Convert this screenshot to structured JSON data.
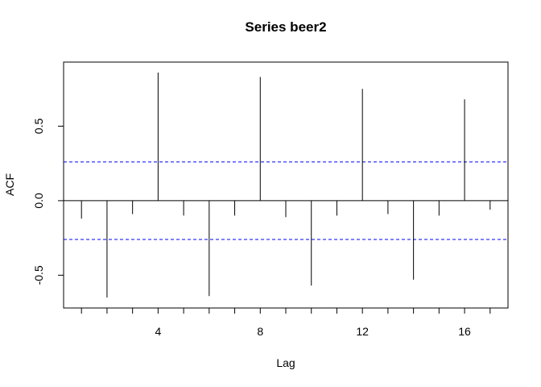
{
  "chart_data": {
    "type": "bar",
    "title": "Series  beer2",
    "xlabel": "Lag",
    "ylabel": "ACF",
    "x": [
      1,
      2,
      3,
      4,
      5,
      6,
      7,
      8,
      9,
      10,
      11,
      12,
      13,
      14,
      15,
      16,
      17
    ],
    "values": [
      -0.12,
      -0.65,
      -0.09,
      0.86,
      -0.1,
      -0.64,
      -0.1,
      0.83,
      -0.11,
      -0.57,
      -0.1,
      0.75,
      -0.09,
      -0.53,
      -0.1,
      0.68,
      -0.06
    ],
    "xlim": [
      0.3,
      17.7
    ],
    "ylim": [
      -0.72,
      0.93
    ],
    "x_ticks": [
      4,
      8,
      12,
      16
    ],
    "x_minor_ticks": [
      1,
      2,
      3,
      4,
      5,
      6,
      7,
      8,
      9,
      10,
      11,
      12,
      13,
      14,
      15,
      16,
      17
    ],
    "x_tick_labels": [
      "4",
      "8",
      "12",
      "16"
    ],
    "y_ticks": [
      -0.5,
      0.0,
      0.5
    ],
    "y_tick_labels": [
      "-0.5",
      "0.0",
      "0.5"
    ],
    "confidence_bounds": [
      0.26,
      -0.26
    ],
    "zero_line": 0,
    "grid": false,
    "colors": {
      "bars": "#000000",
      "confidence": "#0000ff",
      "axes": "#000000"
    }
  }
}
